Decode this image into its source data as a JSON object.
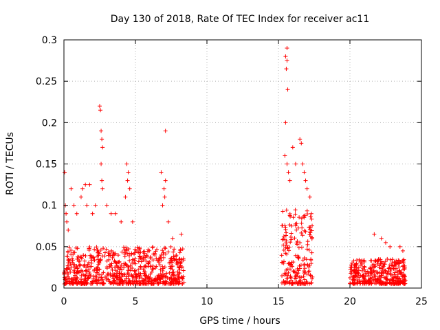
{
  "chart_data": {
    "type": "scatter",
    "title": "Day 130 of 2018, Rate Of TEC Index for receiver ac11",
    "xlabel": "GPS time / hours",
    "ylabel": "ROTI / TECUs",
    "xlim": [
      0,
      25
    ],
    "ylim": [
      0,
      0.3
    ],
    "xticks": [
      0,
      5,
      10,
      15,
      20,
      25
    ],
    "yticks": [
      0,
      0.05,
      0.1,
      0.15,
      0.2,
      0.25,
      0.3
    ],
    "xtick_labels": [
      "0",
      "5",
      "10",
      "15",
      "20",
      "25"
    ],
    "ytick_labels": [
      "0",
      "0.05",
      "0.1",
      "0.15",
      "0.2",
      "0.25",
      "0.3"
    ],
    "grid": true,
    "marker": "plus",
    "color": "#ff0000",
    "segments": [
      {
        "x_start": 0.0,
        "x_end": 8.4,
        "base_max": 0.045
      },
      {
        "x_start": 15.2,
        "x_end": 17.4,
        "base_max": 0.09
      },
      {
        "x_start": 20.0,
        "x_end": 23.9,
        "base_max": 0.03
      }
    ],
    "points": [
      [
        0.05,
        0.14
      ],
      [
        0.1,
        0.1
      ],
      [
        0.15,
        0.09
      ],
      [
        0.2,
        0.08
      ],
      [
        0.3,
        0.07
      ],
      [
        0.5,
        0.12
      ],
      [
        0.7,
        0.1
      ],
      [
        0.9,
        0.09
      ],
      [
        1.2,
        0.11
      ],
      [
        1.3,
        0.12
      ],
      [
        1.5,
        0.125
      ],
      [
        1.6,
        0.1
      ],
      [
        1.8,
        0.125
      ],
      [
        2.0,
        0.09
      ],
      [
        2.2,
        0.1
      ],
      [
        2.5,
        0.22
      ],
      [
        2.55,
        0.215
      ],
      [
        2.6,
        0.19
      ],
      [
        2.65,
        0.18
      ],
      [
        2.7,
        0.17
      ],
      [
        2.6,
        0.15
      ],
      [
        2.65,
        0.13
      ],
      [
        2.7,
        0.12
      ],
      [
        3.0,
        0.1
      ],
      [
        3.3,
        0.09
      ],
      [
        3.6,
        0.09
      ],
      [
        4.0,
        0.08
      ],
      [
        4.4,
        0.15
      ],
      [
        4.5,
        0.14
      ],
      [
        4.45,
        0.13
      ],
      [
        4.6,
        0.12
      ],
      [
        4.3,
        0.11
      ],
      [
        4.8,
        0.08
      ],
      [
        6.8,
        0.14
      ],
      [
        7.0,
        0.12
      ],
      [
        7.1,
        0.13
      ],
      [
        7.05,
        0.11
      ],
      [
        6.9,
        0.1
      ],
      [
        7.1,
        0.19
      ],
      [
        7.3,
        0.08
      ],
      [
        7.6,
        0.06
      ],
      [
        8.2,
        0.065
      ],
      [
        15.5,
        0.28
      ],
      [
        15.6,
        0.29
      ],
      [
        15.55,
        0.265
      ],
      [
        15.6,
        0.275
      ],
      [
        15.65,
        0.24
      ],
      [
        15.5,
        0.2
      ],
      [
        15.45,
        0.16
      ],
      [
        15.6,
        0.15
      ],
      [
        15.7,
        0.14
      ],
      [
        15.8,
        0.13
      ],
      [
        16.0,
        0.17
      ],
      [
        16.2,
        0.15
      ],
      [
        16.5,
        0.18
      ],
      [
        16.6,
        0.175
      ],
      [
        16.7,
        0.15
      ],
      [
        16.8,
        0.14
      ],
      [
        16.9,
        0.13
      ],
      [
        17.0,
        0.12
      ],
      [
        17.2,
        0.11
      ],
      [
        17.3,
        0.09
      ],
      [
        21.7,
        0.065
      ],
      [
        22.2,
        0.06
      ],
      [
        22.5,
        0.055
      ],
      [
        22.8,
        0.05
      ],
      [
        23.5,
        0.05
      ],
      [
        23.7,
        0.045
      ]
    ]
  }
}
